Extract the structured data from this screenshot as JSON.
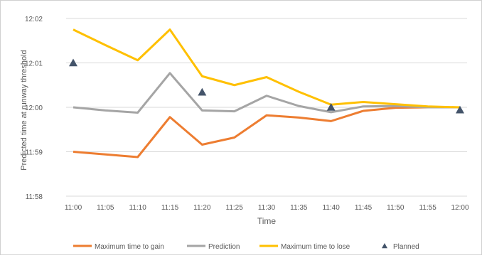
{
  "chart_data": {
    "type": "line",
    "title": "",
    "xlabel": "Time",
    "ylabel": "Predicted time at runway threshold",
    "categories": [
      "11:00",
      "11:05",
      "11:10",
      "11:15",
      "11:20",
      "11:25",
      "11:30",
      "11:35",
      "11:40",
      "11:45",
      "11:50",
      "11:55",
      "12:00"
    ],
    "y_ticks": [
      {
        "value": 0,
        "label": "11:58"
      },
      {
        "value": 1,
        "label": "11:59"
      },
      {
        "value": 2,
        "label": "12:00"
      },
      {
        "value": 3,
        "label": "12:01"
      },
      {
        "value": 4,
        "label": "12:02"
      }
    ],
    "ylim": [
      0,
      4
    ],
    "grid": "horizontal",
    "legend": "bottom",
    "series": [
      {
        "name": "Maximum time to gain",
        "kind": "line",
        "color": "#ED7D31",
        "values": [
          1.0,
          0.94,
          0.88,
          1.78,
          1.16,
          1.32,
          1.82,
          1.77,
          1.69,
          1.92,
          1.99,
          2.0,
          2.0
        ]
      },
      {
        "name": "Prediction",
        "kind": "line",
        "color": "#A5A5A5",
        "values": [
          2.0,
          1.93,
          1.88,
          2.77,
          1.93,
          1.91,
          2.26,
          2.03,
          1.89,
          2.02,
          2.03,
          2.0,
          2.0
        ]
      },
      {
        "name": "Maximum time to lose",
        "kind": "line",
        "color": "#FFC000",
        "values": [
          3.75,
          3.4,
          3.06,
          3.75,
          2.7,
          2.5,
          2.68,
          2.35,
          2.06,
          2.12,
          2.07,
          2.02,
          2.0
        ]
      },
      {
        "name": "Planned",
        "kind": "marker",
        "color": "#44546A",
        "points": [
          {
            "x": "11:00",
            "y": 3.0
          },
          {
            "x": "11:20",
            "y": 2.34
          },
          {
            "x": "11:40",
            "y": 2.0
          },
          {
            "x": "12:00",
            "y": 1.94
          }
        ]
      }
    ]
  }
}
